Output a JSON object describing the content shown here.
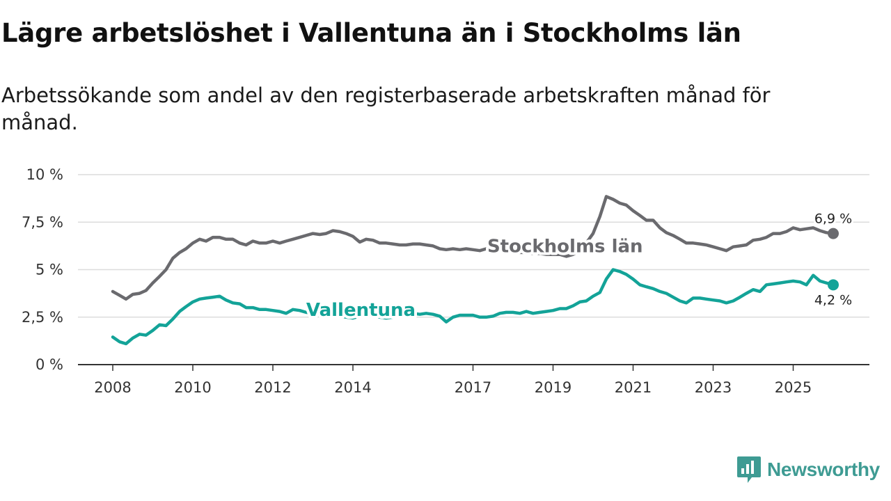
{
  "title": "Lägre arbetslöshet i Vallentuna än i Stockholms län",
  "subtitle": "Arbetssökande som andel av den registerbaserade arbetskraften månad för månad.",
  "brand": {
    "name": "Newsworthy",
    "color": "#3e9b93"
  },
  "chart_data": {
    "type": "line",
    "ylim": [
      0,
      10
    ],
    "xlim": [
      2008.0,
      2026.0
    ],
    "y_ticks": [
      {
        "value": 0,
        "label": "0 %"
      },
      {
        "value": 2.5,
        "label": "2,5 %"
      },
      {
        "value": 5,
        "label": "5 %"
      },
      {
        "value": 7.5,
        "label": "7,5 %"
      },
      {
        "value": 10,
        "label": "10 %"
      }
    ],
    "x_ticks": [
      {
        "value": 2008,
        "label": "2008"
      },
      {
        "value": 2010,
        "label": "2010"
      },
      {
        "value": 2012,
        "label": "2012"
      },
      {
        "value": 2014,
        "label": "2014"
      },
      {
        "value": 2017,
        "label": "2017"
      },
      {
        "value": 2019,
        "label": "2019"
      },
      {
        "value": 2021,
        "label": "2021"
      },
      {
        "value": 2023,
        "label": "2023"
      },
      {
        "value": 2025,
        "label": "2025"
      }
    ],
    "grid": true,
    "series": [
      {
        "name": "Stockholms län",
        "color": "#6a6a6e",
        "end_label": "6,9 %",
        "points": [
          [
            2008.0,
            3.85
          ],
          [
            2008.17,
            3.65
          ],
          [
            2008.33,
            3.45
          ],
          [
            2008.5,
            3.7
          ],
          [
            2008.67,
            3.75
          ],
          [
            2008.83,
            3.9
          ],
          [
            2009.0,
            4.3
          ],
          [
            2009.17,
            4.65
          ],
          [
            2009.33,
            5.0
          ],
          [
            2009.5,
            5.6
          ],
          [
            2009.67,
            5.9
          ],
          [
            2009.83,
            6.1
          ],
          [
            2010.0,
            6.4
          ],
          [
            2010.17,
            6.6
          ],
          [
            2010.33,
            6.5
          ],
          [
            2010.5,
            6.7
          ],
          [
            2010.67,
            6.7
          ],
          [
            2010.83,
            6.6
          ],
          [
            2011.0,
            6.6
          ],
          [
            2011.17,
            6.4
          ],
          [
            2011.33,
            6.3
          ],
          [
            2011.5,
            6.5
          ],
          [
            2011.67,
            6.4
          ],
          [
            2011.83,
            6.4
          ],
          [
            2012.0,
            6.5
          ],
          [
            2012.17,
            6.4
          ],
          [
            2012.33,
            6.5
          ],
          [
            2012.5,
            6.6
          ],
          [
            2012.67,
            6.7
          ],
          [
            2012.83,
            6.8
          ],
          [
            2013.0,
            6.9
          ],
          [
            2013.17,
            6.85
          ],
          [
            2013.33,
            6.9
          ],
          [
            2013.5,
            7.05
          ],
          [
            2013.67,
            7.0
          ],
          [
            2013.83,
            6.9
          ],
          [
            2014.0,
            6.75
          ],
          [
            2014.17,
            6.45
          ],
          [
            2014.33,
            6.6
          ],
          [
            2014.5,
            6.55
          ],
          [
            2014.67,
            6.4
          ],
          [
            2014.83,
            6.4
          ],
          [
            2015.0,
            6.35
          ],
          [
            2015.17,
            6.3
          ],
          [
            2015.33,
            6.3
          ],
          [
            2015.5,
            6.35
          ],
          [
            2015.67,
            6.35
          ],
          [
            2015.83,
            6.3
          ],
          [
            2016.0,
            6.25
          ],
          [
            2016.17,
            6.1
          ],
          [
            2016.33,
            6.05
          ],
          [
            2016.5,
            6.1
          ],
          [
            2016.67,
            6.05
          ],
          [
            2016.83,
            6.1
          ],
          [
            2017.0,
            6.05
          ],
          [
            2017.17,
            6.0
          ],
          [
            2017.33,
            6.1
          ],
          [
            2017.5,
            6.1
          ],
          [
            2017.67,
            6.05
          ],
          [
            2017.83,
            6.0
          ],
          [
            2018.0,
            5.95
          ],
          [
            2018.17,
            5.9
          ],
          [
            2018.33,
            5.9
          ],
          [
            2018.5,
            5.85
          ],
          [
            2018.67,
            5.85
          ],
          [
            2018.83,
            5.8
          ],
          [
            2019.0,
            5.8
          ],
          [
            2019.17,
            5.8
          ],
          [
            2019.33,
            5.7
          ],
          [
            2019.5,
            5.8
          ],
          [
            2019.67,
            6.0
          ],
          [
            2019.83,
            6.4
          ],
          [
            2020.0,
            6.9
          ],
          [
            2020.17,
            7.8
          ],
          [
            2020.33,
            8.85
          ],
          [
            2020.5,
            8.7
          ],
          [
            2020.67,
            8.5
          ],
          [
            2020.83,
            8.4
          ],
          [
            2021.0,
            8.1
          ],
          [
            2021.17,
            7.85
          ],
          [
            2021.33,
            7.6
          ],
          [
            2021.5,
            7.6
          ],
          [
            2021.67,
            7.2
          ],
          [
            2021.83,
            6.95
          ],
          [
            2022.0,
            6.8
          ],
          [
            2022.17,
            6.6
          ],
          [
            2022.33,
            6.4
          ],
          [
            2022.5,
            6.4
          ],
          [
            2022.67,
            6.35
          ],
          [
            2022.83,
            6.3
          ],
          [
            2023.0,
            6.2
          ],
          [
            2023.17,
            6.1
          ],
          [
            2023.33,
            6.0
          ],
          [
            2023.5,
            6.2
          ],
          [
            2023.67,
            6.25
          ],
          [
            2023.83,
            6.3
          ],
          [
            2024.0,
            6.55
          ],
          [
            2024.17,
            6.6
          ],
          [
            2024.33,
            6.7
          ],
          [
            2024.5,
            6.9
          ],
          [
            2024.67,
            6.9
          ],
          [
            2024.83,
            7.0
          ],
          [
            2025.0,
            7.2
          ],
          [
            2025.17,
            7.1
          ],
          [
            2025.33,
            7.15
          ],
          [
            2025.5,
            7.2
          ],
          [
            2025.67,
            7.05
          ],
          [
            2025.83,
            6.95
          ],
          [
            2026.0,
            6.9
          ]
        ]
      },
      {
        "name": "Vallentuna",
        "color": "#13a398",
        "end_label": "4,2 %",
        "points": [
          [
            2008.0,
            1.45
          ],
          [
            2008.17,
            1.2
          ],
          [
            2008.33,
            1.1
          ],
          [
            2008.5,
            1.4
          ],
          [
            2008.67,
            1.6
          ],
          [
            2008.83,
            1.55
          ],
          [
            2009.0,
            1.8
          ],
          [
            2009.17,
            2.1
          ],
          [
            2009.33,
            2.05
          ],
          [
            2009.5,
            2.4
          ],
          [
            2009.67,
            2.8
          ],
          [
            2009.83,
            3.05
          ],
          [
            2010.0,
            3.3
          ],
          [
            2010.17,
            3.45
          ],
          [
            2010.33,
            3.5
          ],
          [
            2010.5,
            3.55
          ],
          [
            2010.67,
            3.6
          ],
          [
            2010.83,
            3.4
          ],
          [
            2011.0,
            3.25
          ],
          [
            2011.17,
            3.2
          ],
          [
            2011.33,
            3.0
          ],
          [
            2011.5,
            3.0
          ],
          [
            2011.67,
            2.9
          ],
          [
            2011.83,
            2.9
          ],
          [
            2012.0,
            2.85
          ],
          [
            2012.17,
            2.8
          ],
          [
            2012.33,
            2.7
          ],
          [
            2012.5,
            2.9
          ],
          [
            2012.67,
            2.85
          ],
          [
            2012.83,
            2.75
          ],
          [
            2013.0,
            2.7
          ],
          [
            2013.17,
            2.6
          ],
          [
            2013.33,
            2.6
          ],
          [
            2013.5,
            2.55
          ],
          [
            2013.67,
            2.55
          ],
          [
            2013.83,
            2.5
          ],
          [
            2014.0,
            2.45
          ],
          [
            2014.17,
            2.55
          ],
          [
            2014.33,
            2.6
          ],
          [
            2014.5,
            2.55
          ],
          [
            2014.67,
            2.5
          ],
          [
            2014.83,
            2.45
          ],
          [
            2015.0,
            2.5
          ],
          [
            2015.17,
            2.55
          ],
          [
            2015.33,
            2.6
          ],
          [
            2015.5,
            2.7
          ],
          [
            2015.67,
            2.65
          ],
          [
            2015.83,
            2.7
          ],
          [
            2016.0,
            2.65
          ],
          [
            2016.17,
            2.55
          ],
          [
            2016.33,
            2.25
          ],
          [
            2016.5,
            2.5
          ],
          [
            2016.67,
            2.6
          ],
          [
            2016.83,
            2.6
          ],
          [
            2017.0,
            2.6
          ],
          [
            2017.17,
            2.5
          ],
          [
            2017.33,
            2.5
          ],
          [
            2017.5,
            2.55
          ],
          [
            2017.67,
            2.7
          ],
          [
            2017.83,
            2.75
          ],
          [
            2018.0,
            2.75
          ],
          [
            2018.17,
            2.7
          ],
          [
            2018.33,
            2.8
          ],
          [
            2018.5,
            2.7
          ],
          [
            2018.67,
            2.75
          ],
          [
            2018.83,
            2.8
          ],
          [
            2019.0,
            2.85
          ],
          [
            2019.17,
            2.95
          ],
          [
            2019.33,
            2.95
          ],
          [
            2019.5,
            3.1
          ],
          [
            2019.67,
            3.3
          ],
          [
            2019.83,
            3.35
          ],
          [
            2020.0,
            3.6
          ],
          [
            2020.17,
            3.8
          ],
          [
            2020.33,
            4.5
          ],
          [
            2020.5,
            5.0
          ],
          [
            2020.67,
            4.9
          ],
          [
            2020.83,
            4.75
          ],
          [
            2021.0,
            4.5
          ],
          [
            2021.17,
            4.2
          ],
          [
            2021.33,
            4.1
          ],
          [
            2021.5,
            4.0
          ],
          [
            2021.67,
            3.85
          ],
          [
            2021.83,
            3.75
          ],
          [
            2022.0,
            3.55
          ],
          [
            2022.17,
            3.35
          ],
          [
            2022.33,
            3.25
          ],
          [
            2022.5,
            3.5
          ],
          [
            2022.67,
            3.5
          ],
          [
            2022.83,
            3.45
          ],
          [
            2023.0,
            3.4
          ],
          [
            2023.17,
            3.35
          ],
          [
            2023.33,
            3.25
          ],
          [
            2023.5,
            3.35
          ],
          [
            2023.67,
            3.55
          ],
          [
            2023.83,
            3.75
          ],
          [
            2024.0,
            3.95
          ],
          [
            2024.17,
            3.85
          ],
          [
            2024.33,
            4.2
          ],
          [
            2024.5,
            4.25
          ],
          [
            2024.67,
            4.3
          ],
          [
            2024.83,
            4.35
          ],
          [
            2025.0,
            4.4
          ],
          [
            2025.17,
            4.35
          ],
          [
            2025.33,
            4.2
          ],
          [
            2025.5,
            4.7
          ],
          [
            2025.67,
            4.4
          ],
          [
            2025.83,
            4.3
          ],
          [
            2026.0,
            4.2
          ]
        ]
      }
    ],
    "series_labels": [
      {
        "series": "Stockholms län",
        "text": "Stockholms län",
        "x": 2019.3,
        "y": 6.25
      },
      {
        "series": "Vallentuna",
        "text": "Vallentuna",
        "x": 2014.2,
        "y": 2.9
      }
    ]
  }
}
